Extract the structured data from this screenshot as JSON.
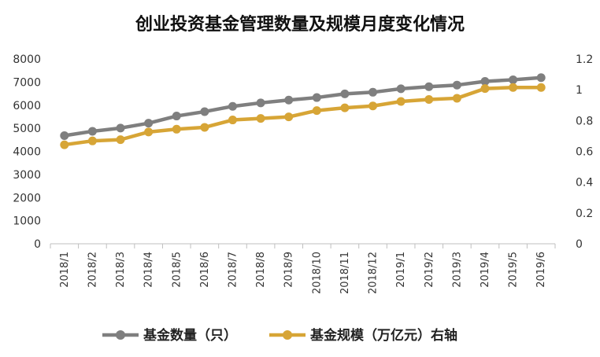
{
  "chart_data": {
    "type": "line",
    "title": "创业投资基金管理数量及规模月度变化情况",
    "categories": [
      "2018/1",
      "2018/2",
      "2018/3",
      "2018/4",
      "2018/5",
      "2018/6",
      "2018/7",
      "2018/8",
      "2018/9",
      "2018/10",
      "2018/11",
      "2018/12",
      "2019/1",
      "2019/2",
      "2019/3",
      "2019/4",
      "2019/5",
      "2019/6"
    ],
    "y_left": {
      "ylim": [
        0,
        8000
      ],
      "ticks": [
        "0",
        "1000",
        "2000",
        "3000",
        "4000",
        "5000",
        "6000",
        "7000",
        "8000"
      ]
    },
    "y_right": {
      "ylim": [
        0,
        1.2
      ],
      "ticks": [
        "0",
        "0.2",
        "0.4",
        "0.6",
        "0.8",
        "1",
        "1.2"
      ]
    },
    "series": [
      {
        "name": "基金数量（只）",
        "axis": "left",
        "color": "#7f7f7f",
        "values": [
          4680,
          4870,
          5010,
          5220,
          5530,
          5720,
          5950,
          6100,
          6220,
          6330,
          6490,
          6560,
          6710,
          6800,
          6870,
          7030,
          7100,
          7190
        ]
      },
      {
        "name": "基金规模（万亿元）右轴",
        "axis": "right",
        "color": "#d7a536",
        "values": [
          0.643,
          0.668,
          0.676,
          0.726,
          0.744,
          0.756,
          0.804,
          0.814,
          0.824,
          0.865,
          0.883,
          0.895,
          0.924,
          0.937,
          0.945,
          1.008,
          1.015,
          1.015
        ]
      }
    ],
    "grid": false,
    "legend": "bottom"
  }
}
